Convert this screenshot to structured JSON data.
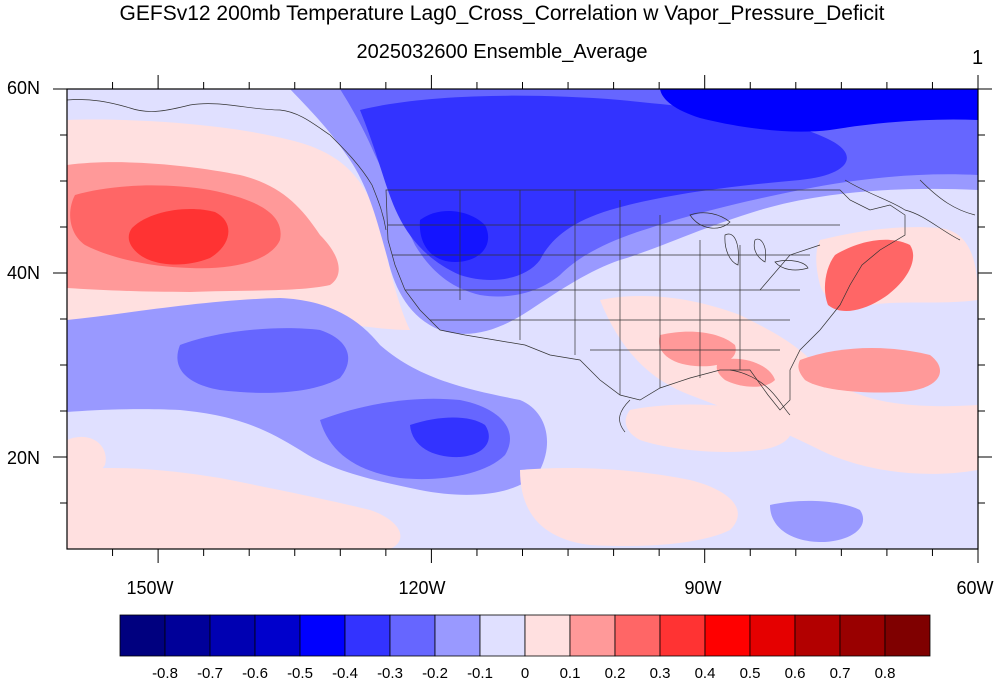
{
  "title": "GEFSv12 200mb Temperature Lag0_Cross_Correlation w Vapor_Pressure_Deficit",
  "subtitle": "2025032600 Ensemble_Average",
  "panel_number": "1",
  "lat_labels": [
    "60N",
    "40N",
    "20N"
  ],
  "lon_labels": [
    "150W",
    "120W",
    "90W",
    "60W"
  ],
  "colorbar": {
    "labels": [
      "-0.8",
      "-0.7",
      "-0.6",
      "-0.5",
      "-0.4",
      "-0.3",
      "-0.2",
      "-0.1",
      "0",
      "0.1",
      "0.2",
      "0.3",
      "0.4",
      "0.5",
      "0.6",
      "0.7",
      "0.8"
    ],
    "colors": [
      "#00007f",
      "#000099",
      "#0000b2",
      "#0000cc",
      "#0000ff",
      "#3333ff",
      "#6666ff",
      "#9999ff",
      "#e0e0ff",
      "#ffe0e0",
      "#ff9999",
      "#ff6666",
      "#ff3333",
      "#ff0000",
      "#e50000",
      "#b20000",
      "#990000",
      "#7f0000"
    ]
  },
  "map": {
    "projection": "cylindrical-equidistant",
    "lon_range": [
      -160,
      -60
    ],
    "lat_range": [
      10,
      60
    ]
  }
}
